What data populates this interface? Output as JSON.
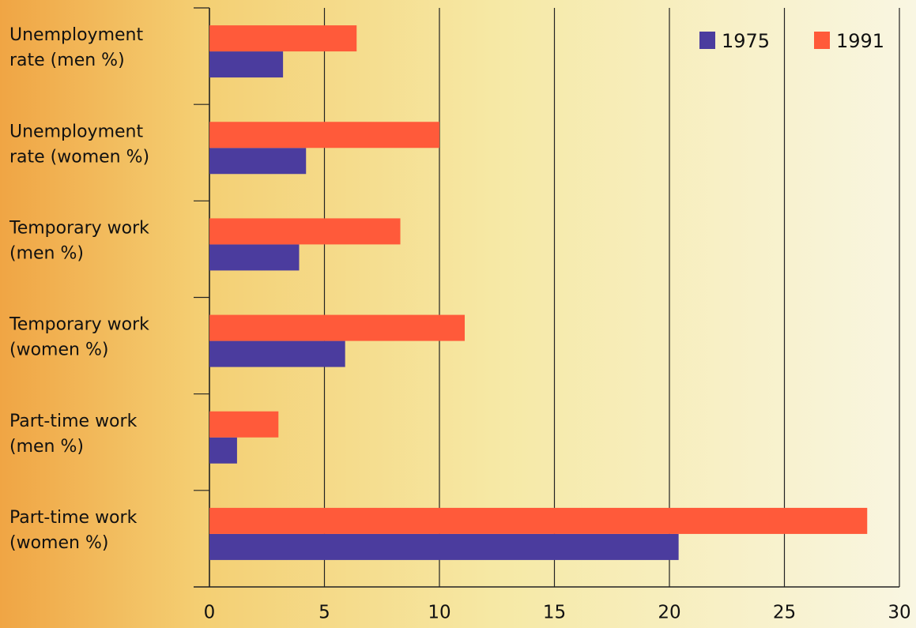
{
  "chart_data": {
    "type": "hbar",
    "categories": [
      [
        "Unemployment",
        "rate (men %)"
      ],
      [
        "Unemployment",
        "rate (women %)"
      ],
      [
        "Temporary work",
        "(men %)"
      ],
      [
        "Temporary work",
        "(women %)"
      ],
      [
        "Part-time work",
        "(men %)"
      ],
      [
        "Part-time work",
        "(women %)"
      ]
    ],
    "series": [
      {
        "name": "1975",
        "color": "#4b3c9e",
        "values": [
          3.2,
          4.2,
          3.9,
          5.9,
          1.2,
          20.4
        ]
      },
      {
        "name": "1991",
        "color": "#ff5a3a",
        "values": [
          6.4,
          10.0,
          8.3,
          11.1,
          3.0,
          28.6
        ]
      }
    ],
    "xlim": [
      0,
      30
    ],
    "xticks": [
      0,
      5,
      10,
      15,
      20,
      25,
      30
    ],
    "grid": true,
    "legend": "top-right"
  }
}
